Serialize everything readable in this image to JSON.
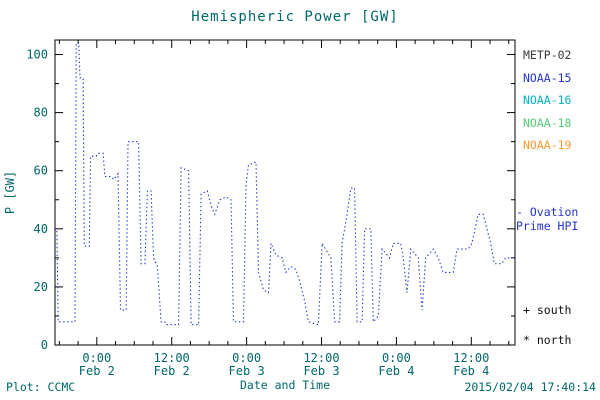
{
  "title": "Hemispheric Power [GW]",
  "footer": {
    "left": "Plot: CCMC",
    "center": "Date and Time",
    "right": "2015/02/04 17:40:14"
  },
  "legend": {
    "satellites": [
      {
        "label": "METP-02",
        "color": "#3a3a3a"
      },
      {
        "label": "NOAA-15",
        "color": "#2233cc"
      },
      {
        "label": "NOAA-16",
        "color": "#00b0c8"
      },
      {
        "label": "NOAA-18",
        "color": "#55cc77"
      },
      {
        "label": "NOAA-19",
        "color": "#ff9933"
      }
    ],
    "ovation_line1": "- Ovation",
    "ovation_line2": "Prime HPI",
    "ovation_color": "#2233cc",
    "marker_south": "+ south",
    "marker_north": "* north"
  },
  "chart_data": {
    "type": "line",
    "title": "Hemispheric Power [GW]",
    "xlabel": "Date and Time",
    "ylabel": "P [GW]",
    "line_color": "#2233cc",
    "text_color": "#006868",
    "line_style": "dotted-step",
    "legend_position": "right",
    "grid": false,
    "xlim": [
      -6.7,
      67
    ],
    "ylim": [
      0,
      105
    ],
    "yticks": [
      0,
      20,
      40,
      60,
      80,
      100
    ],
    "xticks": [
      {
        "t": 0,
        "time": "0:00",
        "date": "Feb 2"
      },
      {
        "t": 12,
        "time": "12:00",
        "date": "Feb 2"
      },
      {
        "t": 24,
        "time": "0:00",
        "date": "Feb 3"
      },
      {
        "t": 36,
        "time": "12:00",
        "date": "Feb 3"
      },
      {
        "t": 48,
        "time": "0:00",
        "date": "Feb 4"
      },
      {
        "t": 60,
        "time": "12:00",
        "date": "Feb 4"
      }
    ],
    "x_unit": "hours from 2015-02-02 00:00",
    "points": [
      [
        -6.7,
        40
      ],
      [
        -6.4,
        40
      ],
      [
        -6.2,
        8
      ],
      [
        -3.5,
        8
      ],
      [
        -3.3,
        104
      ],
      [
        -2.9,
        104
      ],
      [
        -2.7,
        92
      ],
      [
        -2.2,
        92
      ],
      [
        -2.0,
        34
      ],
      [
        -1.2,
        34
      ],
      [
        -1.0,
        65
      ],
      [
        -0.1,
        65
      ],
      [
        0.2,
        66
      ],
      [
        1.0,
        66
      ],
      [
        1.3,
        58
      ],
      [
        2.3,
        58
      ],
      [
        2.7,
        57
      ],
      [
        3.4,
        59
      ],
      [
        3.8,
        12
      ],
      [
        4.7,
        12
      ],
      [
        5.0,
        70
      ],
      [
        6.7,
        70
      ],
      [
        7.1,
        28
      ],
      [
        7.7,
        28
      ],
      [
        8.1,
        53
      ],
      [
        8.7,
        53
      ],
      [
        9.1,
        30
      ],
      [
        9.7,
        27
      ],
      [
        10.3,
        8
      ],
      [
        10.9,
        8
      ],
      [
        11.1,
        7
      ],
      [
        13.1,
        7
      ],
      [
        13.5,
        61
      ],
      [
        14.7,
        60
      ],
      [
        15.1,
        7
      ],
      [
        16.3,
        7
      ],
      [
        16.7,
        52
      ],
      [
        17.7,
        53
      ],
      [
        18.3,
        48
      ],
      [
        18.9,
        45
      ],
      [
        19.7,
        50
      ],
      [
        20.7,
        51
      ],
      [
        21.5,
        50
      ],
      [
        21.9,
        8
      ],
      [
        23.5,
        8
      ],
      [
        23.9,
        55
      ],
      [
        24.3,
        62
      ],
      [
        25.5,
        63
      ],
      [
        25.9,
        25
      ],
      [
        26.7,
        19
      ],
      [
        27.5,
        18
      ],
      [
        27.9,
        35
      ],
      [
        28.7,
        31
      ],
      [
        29.7,
        30
      ],
      [
        30.3,
        25
      ],
      [
        31.1,
        27
      ],
      [
        31.9,
        26
      ],
      [
        32.5,
        22
      ],
      [
        33.3,
        15
      ],
      [
        33.9,
        8
      ],
      [
        35.5,
        7
      ],
      [
        36.1,
        35
      ],
      [
        37.5,
        30
      ],
      [
        38.1,
        8
      ],
      [
        38.9,
        8
      ],
      [
        39.3,
        35
      ],
      [
        40.1,
        45
      ],
      [
        40.7,
        54
      ],
      [
        41.3,
        54
      ],
      [
        41.7,
        8
      ],
      [
        42.5,
        8
      ],
      [
        42.9,
        40
      ],
      [
        43.9,
        40
      ],
      [
        44.3,
        8
      ],
      [
        45.1,
        10
      ],
      [
        45.7,
        33
      ],
      [
        46.9,
        30
      ],
      [
        47.5,
        35
      ],
      [
        48.7,
        35
      ],
      [
        49.1,
        30
      ],
      [
        49.7,
        18
      ],
      [
        50.3,
        33
      ],
      [
        51.5,
        30
      ],
      [
        52.1,
        12
      ],
      [
        52.7,
        30
      ],
      [
        53.9,
        33
      ],
      [
        54.7,
        30
      ],
      [
        55.5,
        25
      ],
      [
        57.1,
        25
      ],
      [
        57.7,
        33
      ],
      [
        59.5,
        33
      ],
      [
        60.1,
        35
      ],
      [
        61.1,
        45
      ],
      [
        61.9,
        45
      ],
      [
        62.5,
        40
      ],
      [
        63.1,
        35
      ],
      [
        63.7,
        28
      ],
      [
        64.9,
        28
      ],
      [
        65.5,
        30
      ],
      [
        66.7,
        30
      ]
    ]
  }
}
